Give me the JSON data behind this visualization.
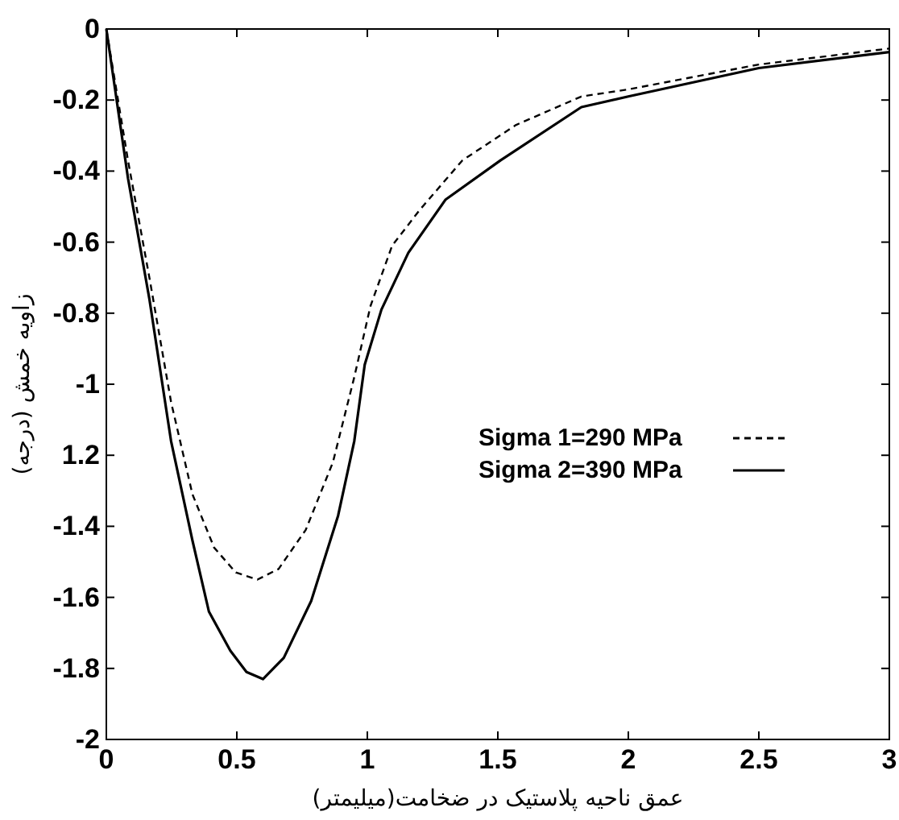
{
  "chart_data": {
    "type": "line",
    "xlabel": "عمق ناحیه پلاستیک در ضخامت(میلیمتر)",
    "ylabel": "زاویه خمش (درجه)",
    "xlim": [
      0,
      3
    ],
    "ylim": [
      -2,
      0
    ],
    "xticks": [
      0,
      0.5,
      1,
      1.5,
      2,
      2.5,
      3
    ],
    "yticks": [
      0,
      -0.2,
      -0.4,
      -0.6,
      -0.8,
      -1,
      {
        "value": -1.2,
        "label": "1.2"
      },
      -1.4,
      -1.6,
      -1.8,
      -2
    ],
    "legend": "right",
    "series": [
      {
        "name": "Sigma 1=290 MPa",
        "color": "#000000",
        "line_style": "dashed",
        "x": [
          0,
          0.083,
          0.165,
          0.248,
          0.33,
          0.413,
          0.496,
          0.579,
          0.66,
          0.764,
          0.868,
          0.95,
          1.012,
          1.095,
          1.2,
          1.364,
          1.57,
          1.82,
          2,
          2.5,
          3
        ],
        "values": [
          0,
          -0.37,
          -0.7,
          -1.05,
          -1.31,
          -1.46,
          -1.53,
          -1.55,
          -1.52,
          -1.41,
          -1.22,
          -0.98,
          -0.78,
          -0.61,
          -0.51,
          -0.37,
          -0.27,
          -0.19,
          -0.17,
          -0.1,
          -0.055
        ]
      },
      {
        "name": "Sigma 2=390 MPa",
        "color": "#000000",
        "line_style": "solid",
        "x": [
          0,
          0.083,
          0.165,
          0.248,
          0.33,
          0.393,
          0.475,
          0.537,
          0.6,
          0.68,
          0.785,
          0.888,
          0.95,
          0.99,
          1.054,
          1.157,
          1.3,
          1.51,
          1.82,
          2,
          2.5,
          3
        ],
        "values": [
          0,
          -0.42,
          -0.76,
          -1.16,
          -1.44,
          -1.64,
          -1.75,
          -1.81,
          -1.83,
          -1.77,
          -1.61,
          -1.37,
          -1.16,
          -0.945,
          -0.79,
          -0.63,
          -0.48,
          -0.37,
          -0.22,
          -0.19,
          -0.11,
          -0.065
        ]
      }
    ]
  }
}
